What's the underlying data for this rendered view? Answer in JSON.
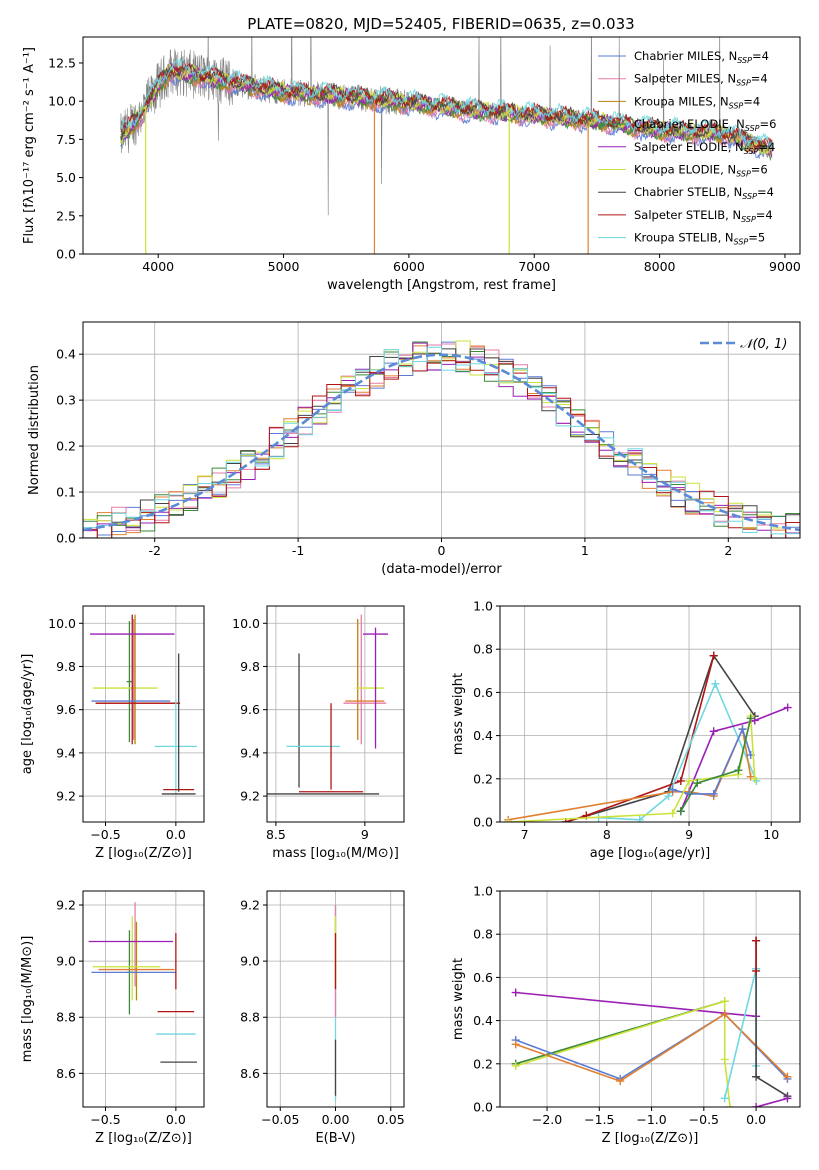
{
  "chart_data": [
    {
      "id": "spectrum",
      "type": "line",
      "title": "PLATE=0820, MJD=52405, FIBERID=0635, z=0.033",
      "xlabel": "wavelength [Angstrom, rest frame]",
      "ylabel": "Flux [fλ10⁻¹⁷ erg cm⁻² s⁻¹ A⁻¹]",
      "xlim": [
        3400,
        9120
      ],
      "ylim": [
        0,
        14.2
      ],
      "xticks": [
        4000,
        5000,
        6000,
        7000,
        8000,
        9000
      ],
      "yticks": [
        0.0,
        2.5,
        5.0,
        7.5,
        10.0,
        12.5
      ],
      "grid": false,
      "legend_position": "top-right",
      "continuum": {
        "x": [
          3700,
          3850,
          4000,
          4100,
          4300,
          4600,
          5000,
          5500,
          6000,
          6500,
          7000,
          7500,
          8000,
          8500,
          8900
        ],
        "y": [
          7.6,
          9.0,
          11.0,
          12.0,
          11.7,
          11.2,
          10.6,
          10.3,
          9.9,
          9.4,
          9.1,
          8.7,
          8.1,
          7.9,
          6.8
        ]
      },
      "series": [
        {
          "name": "Chabrier MILES, N_SSP=4",
          "color": "#5b7bd5"
        },
        {
          "name": "Salpeter MILES, N_SSP=4",
          "color": "#e67ba8"
        },
        {
          "name": "Kroupa MILES, N_SSP=4",
          "color": "#b8860b"
        },
        {
          "name": "Chabrier ELODIE, N_SSP=6",
          "color": "#3a8a3a"
        },
        {
          "name": "Salpeter ELODIE, N_SSP=4",
          "color": "#9b1fb5"
        },
        {
          "name": "Kroupa ELODIE, N_SSP=6",
          "color": "#cde23a"
        },
        {
          "name": "Chabrier STELIB, N_SSP=4",
          "color": "#444444"
        },
        {
          "name": "Salpeter STELIB, N_SSP=4",
          "color": "#b01515"
        },
        {
          "name": "Kroupa STELIB, N_SSP=5",
          "color": "#6fd8e0"
        }
      ]
    },
    {
      "id": "residuals",
      "type": "line",
      "title": "",
      "xlabel": "(data-model)/error",
      "ylabel": "Normed distribution",
      "xlim": [
        -2.5,
        2.5
      ],
      "ylim": [
        0,
        0.47
      ],
      "xticks": [
        -2,
        -1,
        0,
        1,
        2
      ],
      "yticks": [
        0.0,
        0.1,
        0.2,
        0.3,
        0.4
      ],
      "grid": true,
      "legend_position": "top-right",
      "legend": "𝒩(0, 1)",
      "gaussian": {
        "mean": 0,
        "sigma": 1,
        "color": "#5b8ad6"
      },
      "histogram": {
        "bin_width": 0.1,
        "range": [
          -2.5,
          2.5
        ]
      }
    },
    {
      "id": "age_vs_z",
      "type": "scatter",
      "xlabel": "Z [log₁₀(Z/Z⊙)]",
      "ylabel": "age  [log₁₀(age/yr)]",
      "xlim": [
        -0.66,
        0.2
      ],
      "ylim": [
        9.08,
        10.08
      ],
      "xticks": [
        -0.5,
        0.0
      ],
      "xtick_labels": [
        "−0.5",
        "0.0"
      ],
      "yticks": [
        9.2,
        9.4,
        9.6,
        9.8,
        10.0
      ],
      "grid": true,
      "points": [
        {
          "x": -0.33,
          "y": 9.73,
          "xerr": 0.02,
          "yerr": 0.28,
          "color": "#3a8a3a"
        },
        {
          "x": -0.36,
          "y": 9.7,
          "xerr": 0.23,
          "yerr": 0.0,
          "color": "#cde23a"
        },
        {
          "x": -0.3,
          "y": 9.74,
          "xerr": 0.0,
          "yerr": 0.28,
          "color": "#e67ba8"
        },
        {
          "x": -0.29,
          "y": 9.74,
          "xerr": 0.0,
          "yerr": 0.3,
          "color": "#b8860b"
        },
        {
          "x": -0.31,
          "y": 9.74,
          "xerr": 0.0,
          "yerr": 0.3,
          "color": "#b01515"
        },
        {
          "x": -0.31,
          "y": 9.95,
          "xerr": 0.3,
          "yerr": 0.0,
          "color": "#9b1fb5"
        },
        {
          "x": -0.32,
          "y": 9.64,
          "xerr": 0.28,
          "yerr": 0.0,
          "color": "#5b7bd5"
        },
        {
          "x": -0.27,
          "y": 9.63,
          "xerr": 0.3,
          "yerr": 0.0,
          "color": "#e08030"
        },
        {
          "x": -0.27,
          "y": 9.63,
          "xerr": 0.3,
          "yerr": 0.0,
          "color": "#b01515"
        },
        {
          "x": 0.0,
          "y": 9.43,
          "xerr": 0.15,
          "yerr": 0.22,
          "color": "#6fd8e0"
        },
        {
          "x": 0.02,
          "y": 9.54,
          "xerr": 0.0,
          "yerr": 0.32,
          "color": "#444444"
        },
        {
          "x": 0.02,
          "y": 9.23,
          "xerr": 0.11,
          "yerr": 0.0,
          "color": "#b01515"
        },
        {
          "x": 0.02,
          "y": 9.21,
          "xerr": 0.12,
          "yerr": 0.0,
          "color": "#444444"
        }
      ]
    },
    {
      "id": "age_vs_mass",
      "type": "scatter",
      "xlabel": "mass [log₁₀(M/M⊙)]",
      "ylabel": "",
      "xlim": [
        8.45,
        9.22
      ],
      "ylim": [
        9.08,
        10.08
      ],
      "xticks": [
        8.5,
        9.0
      ],
      "yticks": [
        9.2,
        9.4,
        9.6,
        9.8,
        10.0
      ],
      "grid": true,
      "points": [
        {
          "x": 8.63,
          "y": 9.55,
          "xerr": 0.0,
          "yerr": 0.31,
          "color": "#444444"
        },
        {
          "x": 8.71,
          "y": 9.43,
          "xerr": 0.15,
          "yerr": 0.0,
          "color": "#6fd8e0"
        },
        {
          "x": 8.73,
          "y": 9.21,
          "xerr": 0.35,
          "yerr": 0.0,
          "color": "#444444"
        },
        {
          "x": 8.81,
          "y": 9.22,
          "xerr": 0.18,
          "yerr": 0.0,
          "color": "#b01515"
        },
        {
          "x": 8.81,
          "y": 9.43,
          "xerr": 0.0,
          "yerr": 0.2,
          "color": "#b01515"
        },
        {
          "x": 8.96,
          "y": 9.74,
          "xerr": 0.0,
          "yerr": 0.28,
          "color": "#b8860b"
        },
        {
          "x": 8.98,
          "y": 9.74,
          "xerr": 0.0,
          "yerr": 0.3,
          "color": "#e67ba8"
        },
        {
          "x": 9.03,
          "y": 9.7,
          "xerr": 0.08,
          "yerr": 0.0,
          "color": "#cde23a"
        },
        {
          "x": 9.0,
          "y": 9.64,
          "xerr": 0.11,
          "yerr": 0.0,
          "color": "#e08030"
        },
        {
          "x": 9.0,
          "y": 9.63,
          "xerr": 0.12,
          "yerr": 0.0,
          "color": "#e67ba8"
        },
        {
          "x": 9.06,
          "y": 9.95,
          "xerr": 0.07,
          "yerr": 0.0,
          "color": "#9b1fb5"
        },
        {
          "x": 9.06,
          "y": 9.7,
          "xerr": 0.0,
          "yerr": 0.28,
          "color": "#9b1fb5"
        }
      ]
    },
    {
      "id": "weight_vs_age",
      "type": "line",
      "xlabel": "age  [log₁₀(age/yr)]",
      "ylabel": "mass weight",
      "xlim": [
        6.7,
        10.35
      ],
      "ylim": [
        0,
        1.0
      ],
      "xticks": [
        7,
        8,
        9,
        10
      ],
      "yticks": [
        0.0,
        0.2,
        0.4,
        0.6,
        0.8,
        1.0
      ],
      "grid": true,
      "series": [
        {
          "color": "#444444",
          "x": [
            7.5,
            8.75,
            9.3,
            9.8
          ],
          "y": [
            0.0,
            0.14,
            0.77,
            0.49
          ]
        },
        {
          "color": "#b01515",
          "x": [
            7.5,
            7.75,
            8.9,
            9.3
          ],
          "y": [
            0.0,
            0.03,
            0.19,
            0.77
          ]
        },
        {
          "color": "#6fd8e0",
          "x": [
            7.9,
            8.4,
            8.75,
            9.32,
            9.82
          ],
          "y": [
            0.02,
            0.01,
            0.12,
            0.64,
            0.19
          ]
        },
        {
          "color": "#9b1fb5",
          "x": [
            8.9,
            9.3,
            9.8,
            10.2
          ],
          "y": [
            0.05,
            0.42,
            0.47,
            0.53
          ]
        },
        {
          "color": "#e08030",
          "x": [
            6.8,
            8.8,
            9.0,
            9.3,
            9.65,
            9.75
          ],
          "y": [
            0.01,
            0.14,
            0.14,
            0.12,
            0.43,
            0.21
          ]
        },
        {
          "color": "#5b7bd5",
          "x": [
            8.8,
            9.0,
            9.3,
            9.65,
            9.75
          ],
          "y": [
            0.15,
            0.13,
            0.13,
            0.43,
            0.31
          ]
        },
        {
          "color": "#cde23a",
          "x": [
            6.8,
            8.8,
            9.0,
            9.6,
            9.75,
            9.8
          ],
          "y": [
            0.0,
            0.04,
            0.19,
            0.22,
            0.49,
            0.2
          ]
        },
        {
          "color": "#3a8a3a",
          "x": [
            8.9,
            9.1,
            9.6,
            9.75
          ],
          "y": [
            0.05,
            0.18,
            0.24,
            0.48
          ]
        }
      ]
    },
    {
      "id": "mass_vs_z",
      "type": "scatter",
      "xlabel": "Z [log₁₀(Z/Z⊙)]",
      "ylabel": "mass [log₁₀(M/M⊙)]",
      "xlim": [
        -0.66,
        0.2
      ],
      "ylim": [
        8.48,
        9.25
      ],
      "xticks": [
        -0.5,
        0.0
      ],
      "xtick_labels": [
        "−0.5",
        "0.0"
      ],
      "yticks": [
        8.6,
        8.8,
        9.0,
        9.2
      ],
      "grid": true,
      "points": [
        {
          "x": -0.33,
          "y": 8.96,
          "xerr": 0.02,
          "yerr": 0.15,
          "color": "#3a8a3a"
        },
        {
          "x": -0.31,
          "y": 9.01,
          "xerr": 0.0,
          "yerr": 0.15,
          "color": "#cde23a"
        },
        {
          "x": -0.29,
          "y": 9.06,
          "xerr": 0.0,
          "yerr": 0.15,
          "color": "#e67ba8"
        },
        {
          "x": -0.28,
          "y": 9.0,
          "xerr": 0.0,
          "yerr": 0.14,
          "color": "#b8860b"
        },
        {
          "x": -0.3,
          "y": 8.96,
          "xerr": 0.3,
          "yerr": 0.0,
          "color": "#5b7bd5"
        },
        {
          "x": -0.35,
          "y": 8.98,
          "xerr": 0.24,
          "yerr": 0.0,
          "color": "#cde23a"
        },
        {
          "x": -0.32,
          "y": 9.07,
          "xerr": 0.3,
          "yerr": 0.0,
          "color": "#9b1fb5"
        },
        {
          "x": -0.28,
          "y": 8.97,
          "xerr": 0.27,
          "yerr": 0.0,
          "color": "#e08030"
        },
        {
          "x": 0.0,
          "y": 8.82,
          "xerr": 0.13,
          "yerr": 0.0,
          "color": "#b01515"
        },
        {
          "x": 0.0,
          "y": 9.0,
          "xerr": 0.0,
          "yerr": 0.1,
          "color": "#b01515"
        },
        {
          "x": 0.0,
          "y": 8.74,
          "xerr": 0.14,
          "yerr": 0.0,
          "color": "#6fd8e0"
        },
        {
          "x": 0.02,
          "y": 8.64,
          "xerr": 0.13,
          "yerr": 0.0,
          "color": "#444444"
        }
      ]
    },
    {
      "id": "mass_vs_ebv",
      "type": "scatter",
      "xlabel": "E(B-V)",
      "ylabel": "",
      "xlim": [
        -0.062,
        0.062
      ],
      "ylim": [
        8.48,
        9.25
      ],
      "xticks": [
        -0.05,
        0.0,
        0.05
      ],
      "xtick_labels": [
        "−0.05",
        "0.00",
        "0.05"
      ],
      "yticks": [
        8.6,
        8.8,
        9.0,
        9.2
      ],
      "grid": true,
      "points": [
        {
          "x": 0.0,
          "y": 8.85,
          "xerr": 0.0,
          "yerr": 0.35,
          "color": "#6fd8e0"
        },
        {
          "x": 0.0,
          "y": 9.0,
          "xerr": 0.0,
          "yerr": 0.2,
          "color": "#e67ba8"
        },
        {
          "x": 0.0,
          "y": 9.03,
          "xerr": 0.0,
          "yerr": 0.13,
          "color": "#cde23a"
        },
        {
          "x": 0.0,
          "y": 9.0,
          "xerr": 0.0,
          "yerr": 0.1,
          "color": "#b01515"
        },
        {
          "x": 0.0,
          "y": 8.62,
          "xerr": 0.0,
          "yerr": 0.1,
          "color": "#444444"
        }
      ]
    },
    {
      "id": "weight_vs_z",
      "type": "line",
      "xlabel": "Z [log₁₀(Z/Z⊙)]",
      "ylabel": "mass weight",
      "xlim": [
        -2.45,
        0.42
      ],
      "ylim": [
        0,
        1.0
      ],
      "xticks": [
        -2.0,
        -1.5,
        -1.0,
        -0.5,
        0.0
      ],
      "xtick_labels": [
        "−2.0",
        "−1.5",
        "−1.0",
        "−0.5",
        "0.0"
      ],
      "yticks": [
        0.0,
        0.2,
        0.4,
        0.6,
        0.8,
        1.0
      ],
      "grid": true,
      "series": [
        {
          "color": "#9b1fb5",
          "x": [
            -2.3,
            0.0
          ],
          "y": [
            0.53,
            0.42
          ]
        },
        {
          "color": "#3a8a3a",
          "x": [
            -2.3,
            -0.3
          ],
          "y": [
            0.2,
            0.49
          ]
        },
        {
          "color": "#cde23a",
          "x": [
            -2.3,
            -0.3,
            -0.3,
            -0.25
          ],
          "y": [
            0.19,
            0.49,
            0.22,
            0.0
          ]
        },
        {
          "color": "#5b7bd5",
          "x": [
            -2.3,
            -1.3,
            -0.3,
            0.3
          ],
          "y": [
            0.31,
            0.13,
            0.43,
            0.13
          ]
        },
        {
          "color": "#e08030",
          "x": [
            -2.3,
            -1.3,
            -0.3,
            0.3
          ],
          "y": [
            0.29,
            0.12,
            0.43,
            0.14
          ]
        },
        {
          "color": "#6fd8e0",
          "x": [
            -0.3,
            0.0,
            0.0
          ],
          "y": [
            0.04,
            0.64,
            0.19
          ]
        },
        {
          "color": "#444444",
          "x": [
            0.0,
            0.0,
            0.3
          ],
          "y": [
            0.77,
            0.14,
            0.05
          ]
        },
        {
          "color": "#b01515",
          "x": [
            0.0,
            0.0
          ],
          "y": [
            0.77,
            0.63
          ]
        },
        {
          "color": "#9b1fb5",
          "x": [
            0.0,
            0.3
          ],
          "y": [
            0.0,
            0.04
          ]
        }
      ]
    }
  ]
}
